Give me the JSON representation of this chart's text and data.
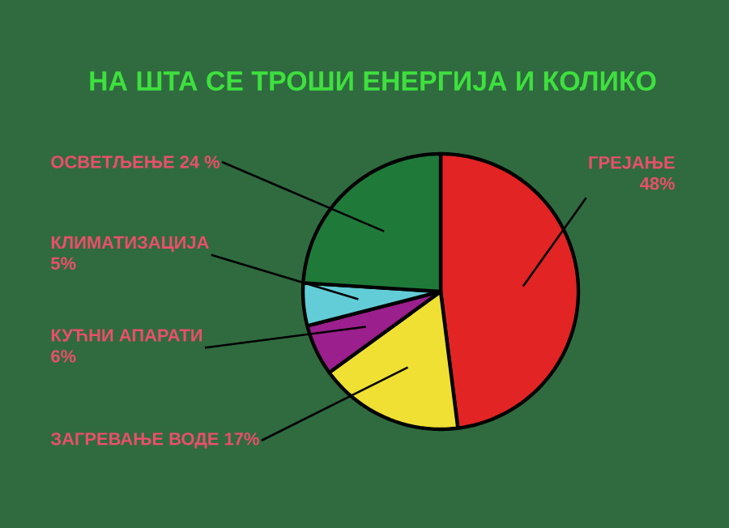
{
  "chart_data": {
    "type": "pie",
    "title": "НА ШТА СЕ ТРОШИ ЕНЕРГИЈА И КОЛИКО",
    "categories": [
      "ГРЕЈАЊЕ",
      "ЗАГРЕВАЊЕ ВОДЕ",
      "КУЋНИ АПАРАТИ",
      "КЛИМАТИЗАЦИЈА",
      "ОСВЕТЉЕЊЕ"
    ],
    "values": [
      48,
      17,
      6,
      5,
      24
    ],
    "value_labels": [
      "48%",
      "17%",
      "6%",
      "5%",
      "24 %"
    ],
    "colors": [
      "#e32424",
      "#efe033",
      "#9b1f8c",
      "#62cdd6",
      "#1f7a3a"
    ]
  }
}
